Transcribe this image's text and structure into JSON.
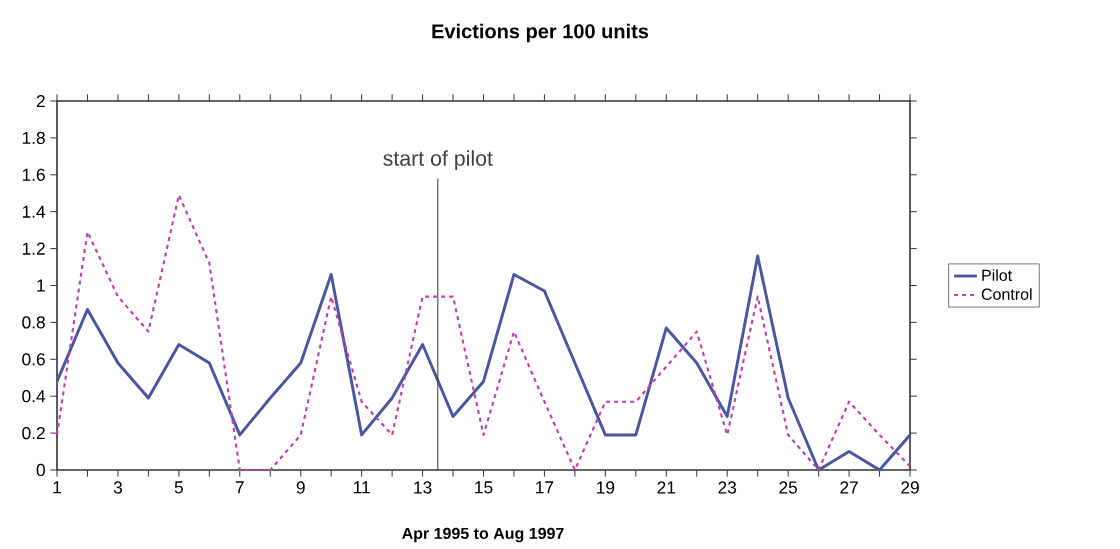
{
  "chart_data": {
    "type": "line",
    "title": "Evictions per 100 units",
    "xlabel": "Apr 1995 to Aug 1997",
    "x": [
      1,
      2,
      3,
      4,
      5,
      6,
      7,
      8,
      9,
      10,
      11,
      12,
      13,
      14,
      15,
      16,
      17,
      18,
      19,
      20,
      21,
      22,
      23,
      24,
      25,
      26,
      27,
      28,
      29
    ],
    "series": [
      {
        "name": "Pilot",
        "color": "#4a55a0",
        "line_style": "solid",
        "values": [
          0.48,
          0.87,
          0.58,
          0.39,
          0.68,
          0.58,
          0.19,
          0.39,
          0.58,
          1.06,
          0.19,
          0.39,
          0.68,
          0.29,
          0.48,
          1.06,
          0.97,
          0.58,
          0.19,
          0.19,
          0.77,
          0.58,
          0.29,
          1.16,
          0.39,
          0,
          0.1,
          0,
          0.19
        ]
      },
      {
        "name": "Control",
        "color": "#c040b0",
        "line_style": "dotted",
        "values": [
          0.19,
          1.29,
          0.94,
          0.75,
          1.49,
          1.12,
          0,
          0,
          0.19,
          0.94,
          0.37,
          0.19,
          0.94,
          0.94,
          0.19,
          0.75,
          0.37,
          0,
          0.37,
          0.37,
          0.56,
          0.75,
          0.19,
          0.94,
          0.19,
          0,
          0.37,
          0.19,
          0.02
        ]
      }
    ],
    "xlim": [
      1,
      29
    ],
    "xticks": [
      1,
      {
        "value": 2,
        "label": null
      },
      3,
      {
        "value": 4,
        "label": null
      },
      5,
      {
        "value": 6,
        "label": null
      },
      7,
      {
        "value": 8,
        "label": null
      },
      9,
      {
        "value": 10,
        "label": null
      },
      11,
      {
        "value": 12,
        "label": null
      },
      13,
      {
        "value": 14,
        "label": null
      },
      15,
      {
        "value": 16,
        "label": null
      },
      17,
      {
        "value": 18,
        "label": null
      },
      19,
      {
        "value": 20,
        "label": null
      },
      21,
      {
        "value": 22,
        "label": null
      },
      23,
      {
        "value": 24,
        "label": null
      },
      25,
      {
        "value": 26,
        "label": null
      },
      27,
      {
        "value": 28,
        "label": null
      },
      29
    ],
    "ylim": [
      0,
      2
    ],
    "yticks": [
      0,
      0.2,
      0.4,
      0.6,
      0.8,
      1,
      1.2,
      1.4,
      1.6,
      1.8,
      2
    ],
    "ref_lines": [
      {
        "axis": "x",
        "value": 13.5,
        "label": "start of pilot",
        "color": "#404040"
      }
    ],
    "grid": false,
    "legend": "right",
    "marker": "none"
  }
}
